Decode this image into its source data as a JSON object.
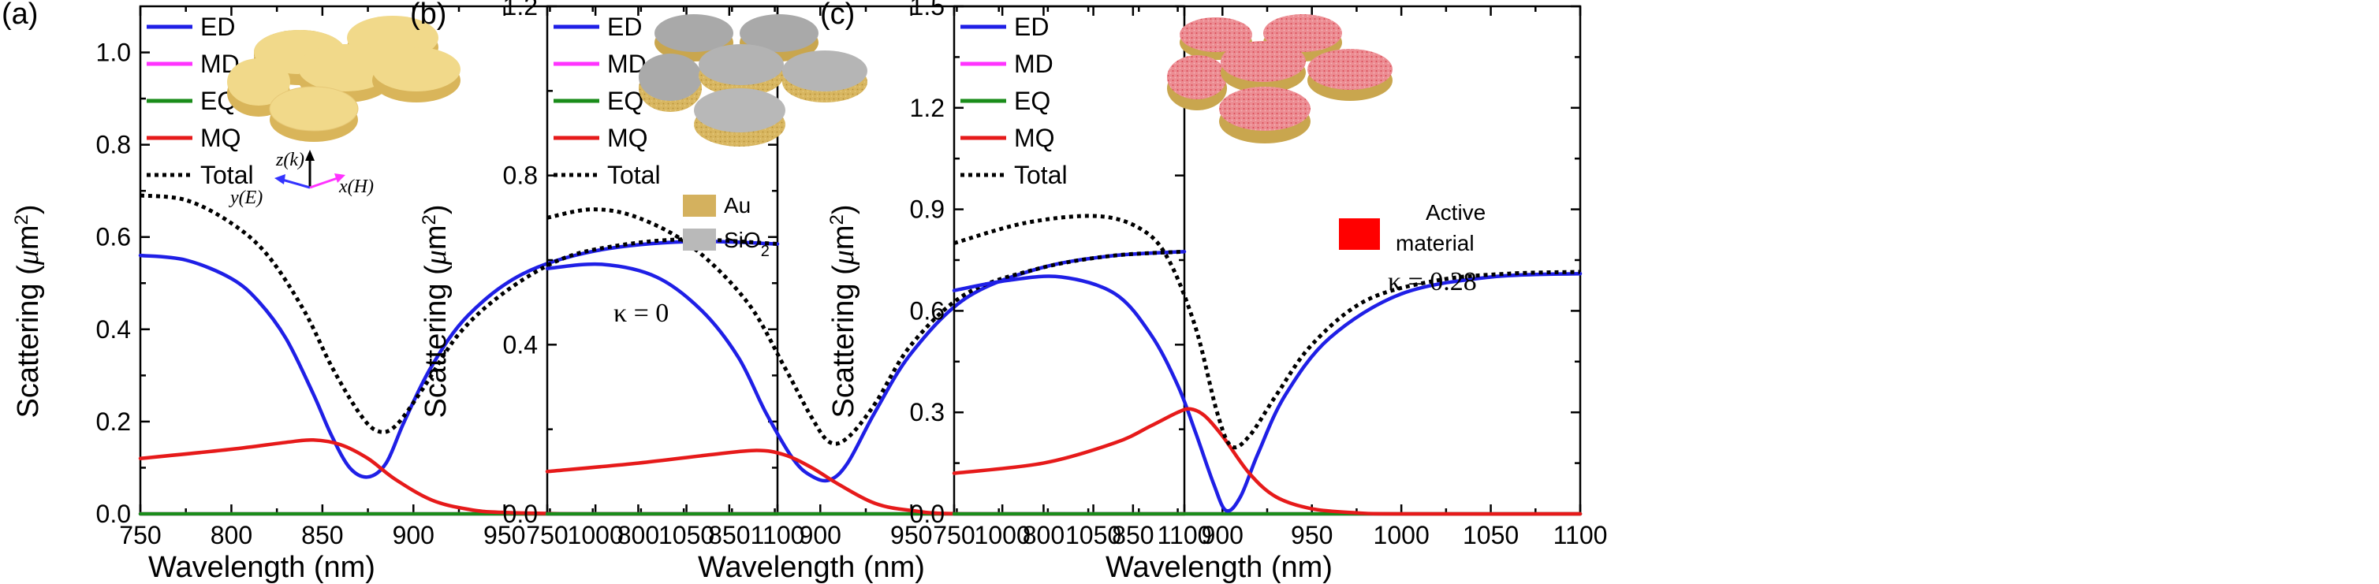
{
  "colors": {
    "ED": "#1f1fe6",
    "MD": "#ff33ff",
    "EQ": "#1a8c1a",
    "MQ": "#e61a1a",
    "Total": "#000000",
    "gold_top": "#f1d98a",
    "gold_side": "#d9b55a",
    "silica_top": "#b8b8b8",
    "active_top": "#e8808a",
    "active_fill": "#ff0000"
  },
  "figure": {
    "xlabel": "Wavelength (nm)",
    "ylabel_prefix": "Scattering (",
    "ylabel_mu": "μ",
    "ylabel_unit": "m",
    "ylabel_exp": "2",
    "ylabel_suffix": ")"
  },
  "chart_data": [
    {
      "type": "line",
      "panel_label": "(a)",
      "xlim": [
        750,
        1100
      ],
      "ylim": [
        0,
        1.1
      ],
      "x_ticks": [
        "750",
        "800",
        "850",
        "900",
        "950",
        "1000",
        "1050",
        "1100"
      ],
      "y_ticks": [
        "0.0",
        "0.2",
        "0.4",
        "0.6",
        "0.8",
        "1.0"
      ],
      "legend": [
        "ED",
        "MD",
        "EQ",
        "MQ",
        "Total"
      ],
      "inset": {
        "material": "gold",
        "axes_labels": {
          "z": "z(k)",
          "y": "y(E)",
          "x": "x(H)"
        }
      },
      "series": [
        {
          "name": "ED",
          "x": [
            750,
            775,
            800,
            815,
            830,
            845,
            855,
            865,
            875,
            885,
            895,
            910,
            930,
            960,
            1000,
            1050,
            1100
          ],
          "y": [
            0.56,
            0.55,
            0.51,
            0.46,
            0.38,
            0.26,
            0.17,
            0.1,
            0.08,
            0.11,
            0.2,
            0.32,
            0.43,
            0.52,
            0.57,
            0.59,
            0.585
          ]
        },
        {
          "name": "MD",
          "x": [
            750,
            1100
          ],
          "y": [
            0.0,
            0.0
          ]
        },
        {
          "name": "EQ",
          "x": [
            750,
            1100
          ],
          "y": [
            0.0,
            0.0
          ]
        },
        {
          "name": "MQ",
          "x": [
            750,
            800,
            830,
            845,
            860,
            875,
            890,
            910,
            930,
            950,
            1000,
            1100
          ],
          "y": [
            0.12,
            0.14,
            0.155,
            0.16,
            0.15,
            0.12,
            0.075,
            0.03,
            0.01,
            0.003,
            0.0,
            0.0
          ]
        },
        {
          "name": "Total",
          "x": [
            750,
            775,
            800,
            820,
            840,
            855,
            870,
            880,
            890,
            905,
            925,
            950,
            980,
            1010,
            1050,
            1100
          ],
          "y": [
            0.69,
            0.68,
            0.63,
            0.56,
            0.44,
            0.32,
            0.22,
            0.18,
            0.19,
            0.27,
            0.39,
            0.48,
            0.55,
            0.58,
            0.595,
            0.585
          ]
        }
      ]
    },
    {
      "type": "line",
      "panel_label": "(b)",
      "xlim": [
        750,
        1100
      ],
      "ylim": [
        0,
        1.2
      ],
      "x_ticks": [
        "750",
        "800",
        "850",
        "900",
        "950",
        "1000",
        "1050",
        "1100"
      ],
      "y_ticks": [
        "0.0",
        "0.4",
        "0.8",
        "1.2"
      ],
      "legend": [
        "ED",
        "MD",
        "EQ",
        "MQ",
        "Total"
      ],
      "annotation": "κ = 0",
      "materials": [
        "Au",
        "SiO2"
      ],
      "inset": {
        "material": "gold-silica"
      },
      "series": [
        {
          "name": "ED",
          "x": [
            750,
            780,
            810,
            835,
            855,
            870,
            885,
            895,
            905,
            915,
            930,
            950,
            980,
            1020,
            1060,
            1100
          ],
          "y": [
            0.58,
            0.59,
            0.56,
            0.48,
            0.37,
            0.24,
            0.13,
            0.09,
            0.08,
            0.12,
            0.24,
            0.38,
            0.51,
            0.58,
            0.61,
            0.62
          ]
        },
        {
          "name": "MD",
          "x": [
            750,
            1100
          ],
          "y": [
            0.0,
            0.0
          ]
        },
        {
          "name": "EQ",
          "x": [
            750,
            1100
          ],
          "y": [
            0.0,
            0.0
          ]
        },
        {
          "name": "MQ",
          "x": [
            750,
            800,
            840,
            865,
            880,
            895,
            910,
            930,
            950,
            980,
            1100
          ],
          "y": [
            0.1,
            0.12,
            0.14,
            0.15,
            0.14,
            0.11,
            0.07,
            0.025,
            0.008,
            0.0,
            0.0
          ]
        },
        {
          "name": "Total",
          "x": [
            750,
            775,
            800,
            830,
            860,
            880,
            895,
            905,
            915,
            930,
            950,
            980,
            1020,
            1060,
            1100
          ],
          "y": [
            0.7,
            0.72,
            0.7,
            0.63,
            0.5,
            0.35,
            0.23,
            0.17,
            0.18,
            0.26,
            0.4,
            0.52,
            0.58,
            0.61,
            0.62
          ]
        }
      ]
    },
    {
      "type": "line",
      "panel_label": "(c)",
      "xlim": [
        750,
        1100
      ],
      "ylim": [
        0,
        1.5
      ],
      "x_ticks": [
        "750",
        "800",
        "850",
        "900",
        "950",
        "1000",
        "1050",
        "1100"
      ],
      "y_ticks": [
        "0.0",
        "0.3",
        "0.6",
        "0.9",
        "1.2",
        "1.5"
      ],
      "legend": [
        "ED",
        "MD",
        "EQ",
        "MQ",
        "Total"
      ],
      "annotation": "κ = 0.28",
      "materials": [
        "Active material"
      ],
      "inset": {
        "material": "active"
      },
      "series": [
        {
          "name": "ED",
          "x": [
            750,
            780,
            810,
            840,
            860,
            875,
            885,
            895,
            902,
            910,
            920,
            935,
            960,
            1000,
            1050,
            1100
          ],
          "y": [
            0.66,
            0.69,
            0.7,
            0.65,
            0.53,
            0.38,
            0.24,
            0.09,
            0.01,
            0.05,
            0.18,
            0.35,
            0.52,
            0.65,
            0.7,
            0.71
          ]
        },
        {
          "name": "MD",
          "x": [
            750,
            1100
          ],
          "y": [
            0.0,
            0.0
          ]
        },
        {
          "name": "EQ",
          "x": [
            750,
            1100
          ],
          "y": [
            0.0,
            0.0
          ]
        },
        {
          "name": "MQ",
          "x": [
            750,
            800,
            840,
            860,
            875,
            882,
            890,
            900,
            915,
            930,
            950,
            975,
            1000,
            1100
          ],
          "y": [
            0.12,
            0.15,
            0.21,
            0.26,
            0.3,
            0.31,
            0.29,
            0.23,
            0.12,
            0.05,
            0.015,
            0.003,
            0.0,
            0.0
          ]
        },
        {
          "name": "Total",
          "x": [
            750,
            790,
            830,
            855,
            870,
            885,
            897,
            905,
            915,
            930,
            950,
            980,
            1020,
            1060,
            1100
          ],
          "y": [
            0.8,
            0.86,
            0.88,
            0.84,
            0.75,
            0.55,
            0.3,
            0.2,
            0.23,
            0.35,
            0.5,
            0.63,
            0.69,
            0.71,
            0.715
          ]
        }
      ]
    }
  ]
}
